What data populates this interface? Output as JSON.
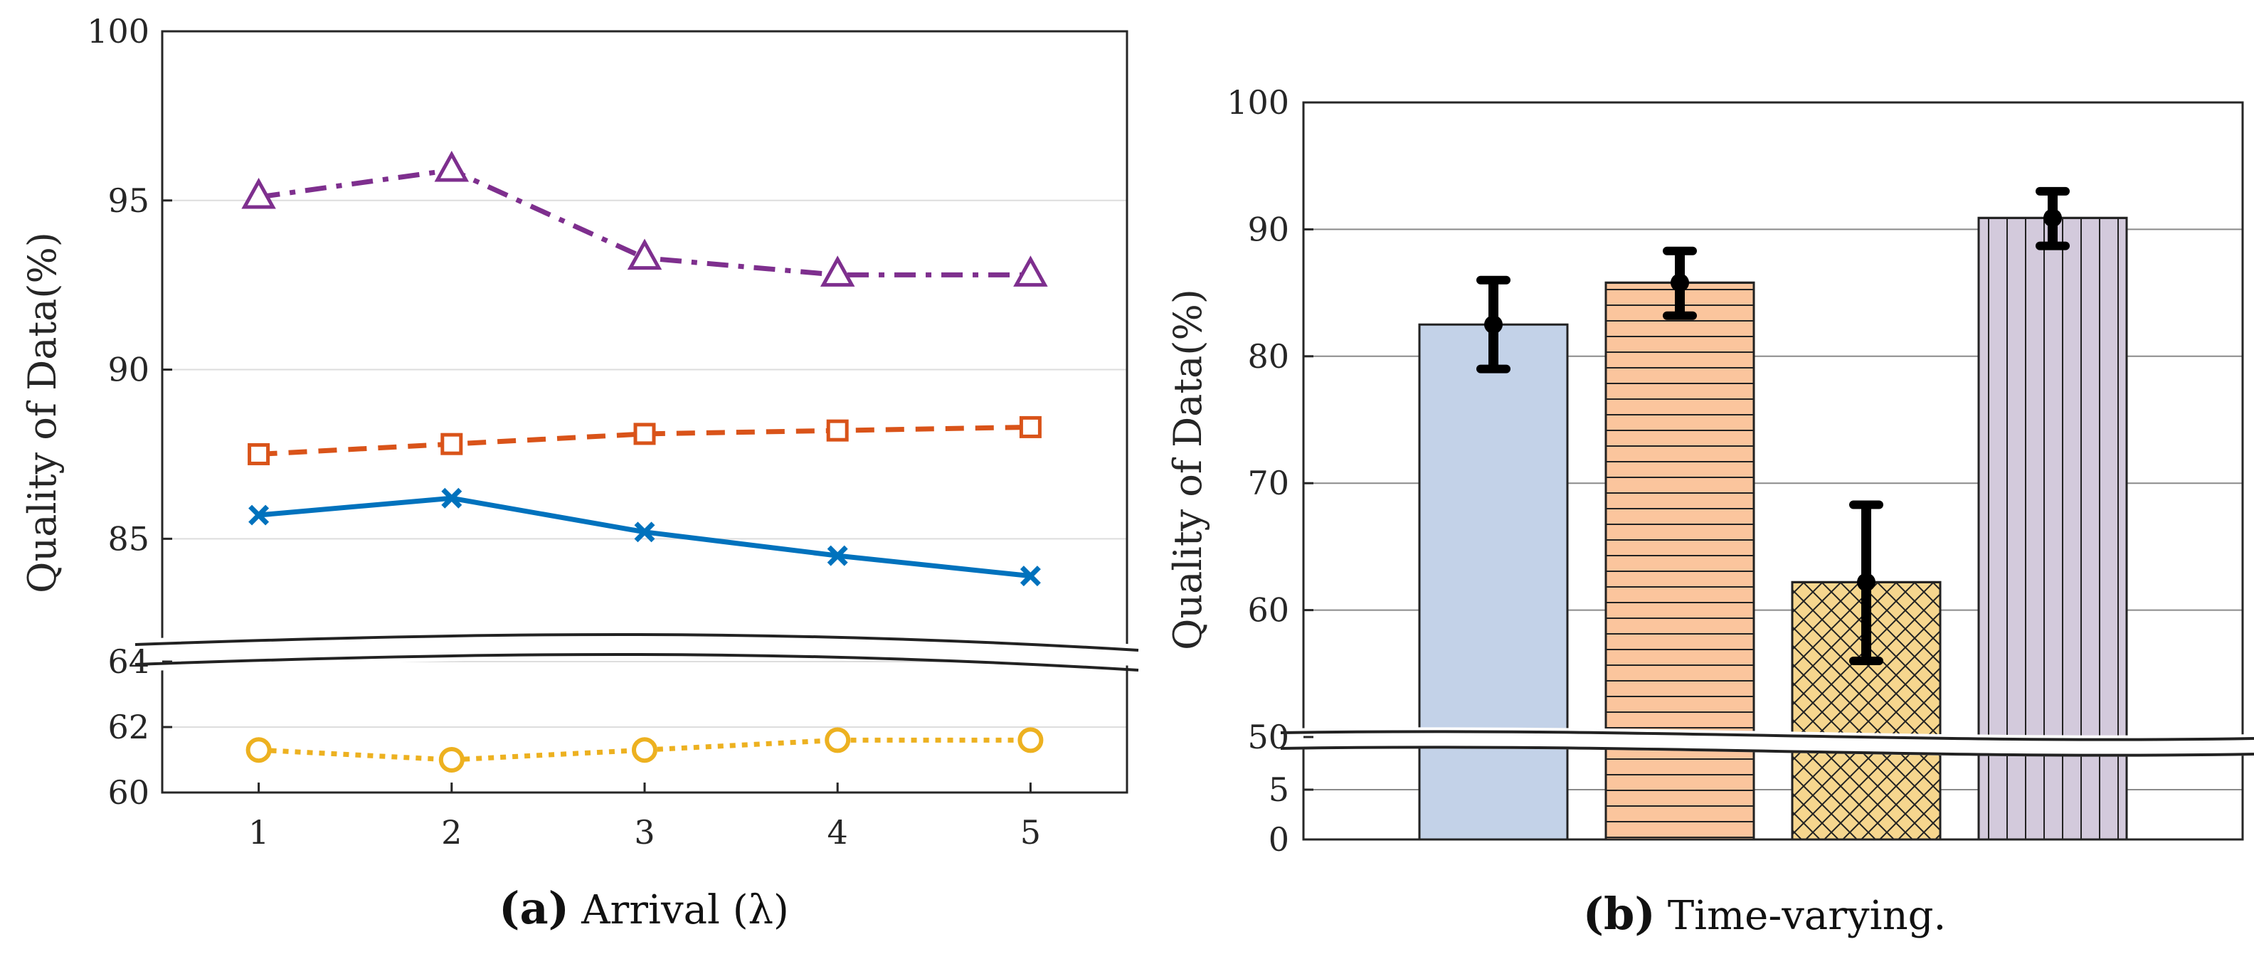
{
  "chart_data": [
    {
      "id": "panel-a",
      "type": "line",
      "caption_letter": "(a)",
      "caption_text": "Arrival (λ)",
      "xlabel": "",
      "ylabel": "Quality of Data(%)",
      "x": [
        1,
        2,
        3,
        4,
        5
      ],
      "x_tick_labels": [
        "1",
        "2",
        "3",
        "4",
        "5"
      ],
      "axis_break": true,
      "y_upper_range": [
        82,
        100
      ],
      "y_upper_ticks": [
        "85",
        "90",
        "95",
        "100"
      ],
      "y_lower_range": [
        60,
        64
      ],
      "y_lower_ticks": [
        "60",
        "62",
        "64"
      ],
      "grid": true,
      "series": [
        {
          "name": "series-purple-triangle",
          "color": "#7E2F8E",
          "marker": "triangle",
          "line": "dashdot",
          "values": [
            95.1,
            95.9,
            93.3,
            92.8,
            92.8
          ]
        },
        {
          "name": "series-orange-square",
          "color": "#D95319",
          "marker": "square",
          "line": "dashed",
          "values": [
            87.5,
            87.8,
            88.1,
            88.2,
            88.3
          ]
        },
        {
          "name": "series-blue-x",
          "color": "#0072BD",
          "marker": "x",
          "line": "solid",
          "values": [
            85.7,
            86.2,
            85.2,
            84.5,
            83.9
          ]
        },
        {
          "name": "series-yellow-circle",
          "color": "#EDB120",
          "marker": "circle",
          "line": "dotted",
          "values": [
            61.3,
            61.0,
            61.3,
            61.6,
            61.6
          ]
        }
      ]
    },
    {
      "id": "panel-b",
      "type": "bar",
      "caption_letter": "(b)",
      "caption_text": "Time-varying.",
      "xlabel": "",
      "ylabel": "Quality of Data(%)",
      "axis_break": true,
      "y_upper_range": [
        50,
        100
      ],
      "y_upper_ticks": [
        "50",
        "60",
        "70",
        "80",
        "90",
        "100"
      ],
      "y_lower_range": [
        0,
        10
      ],
      "y_lower_ticks": [
        "0",
        "5"
      ],
      "grid": true,
      "bars": [
        {
          "name": "bar-blue",
          "value": 82.5,
          "err_low": 79.0,
          "err_high": 86.0,
          "color": "#C3D2E8",
          "pattern": "none"
        },
        {
          "name": "bar-orange",
          "value": 85.8,
          "err_low": 83.2,
          "err_high": 88.3,
          "color": "#FBC59D",
          "pattern": "horizontal"
        },
        {
          "name": "bar-yellow",
          "value": 62.2,
          "err_low": 56.0,
          "err_high": 68.3,
          "color": "#F6D68E",
          "pattern": "crosshatch"
        },
        {
          "name": "bar-purple",
          "value": 90.9,
          "err_low": 88.7,
          "err_high": 93.0,
          "color": "#D3CADC",
          "pattern": "vertical"
        }
      ]
    }
  ]
}
